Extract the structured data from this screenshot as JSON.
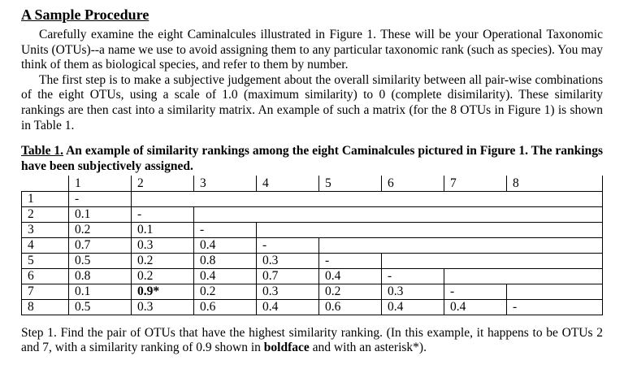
{
  "page": {
    "title": "A Sample Procedure",
    "para1": "Carefully examine the eight Caminalcules illustrated in Figure 1.  These will be your Operational Taxonomic Units (OTUs)--a name we use to avoid assigning them to any particular taxonomic rank (such as species).  You may think of them as biological species, and refer to them by number.",
    "para2": "The first step is to make a subjective judgement about the overall similarity between all pair-wise combinations of the eight OTUs, using a scale of 1.0 (maximum similarity) to 0 (complete disimilarity).  These similarity rankings are then cast into a similarity matrix.  An example of such a matrix (for the 8 OTUs in Figure 1) is shown in Table 1."
  },
  "table": {
    "caption_label": "Table 1.",
    "caption_text": " An example of similarity rankings among the eight Caminalcules pictured in Figure 1.  The rankings have been subjectively assigned.",
    "col_headers": [
      "1",
      "2",
      "3",
      "4",
      "5",
      "6",
      "7",
      "8"
    ],
    "rows": [
      {
        "label": "1",
        "cells": [
          "-"
        ]
      },
      {
        "label": "2",
        "cells": [
          "0.1",
          "-"
        ]
      },
      {
        "label": "3",
        "cells": [
          "0.2",
          "0.1",
          "-"
        ]
      },
      {
        "label": "4",
        "cells": [
          "0.7",
          "0.3",
          "0.4",
          "-"
        ]
      },
      {
        "label": "5",
        "cells": [
          "0.5",
          "0.2",
          "0.8",
          "0.3",
          "-"
        ]
      },
      {
        "label": "6",
        "cells": [
          "0.8",
          "0.2",
          "0.4",
          "0.7",
          "0.4",
          "-"
        ]
      },
      {
        "label": "7",
        "cells": [
          "0.1",
          "0.9*",
          "0.2",
          "0.3",
          "0.2",
          "0.3",
          "-"
        ]
      },
      {
        "label": "8",
        "cells": [
          "0.5",
          "0.3",
          "0.6",
          "0.4",
          "0.6",
          "0.4",
          "0.4",
          "-"
        ]
      }
    ],
    "bold_cell": {
      "row": "7",
      "col": "2",
      "value": "0.9*"
    }
  },
  "step1": {
    "prefix": "Step 1.  Find the pair of OTUs that have the highest similarity ranking.  (In this example, it happens to be OTUs 2 and 7, with a similarity ranking of 0.9 shown in ",
    "bold_word": "boldface",
    "suffix": " and with an asterisk*)."
  }
}
